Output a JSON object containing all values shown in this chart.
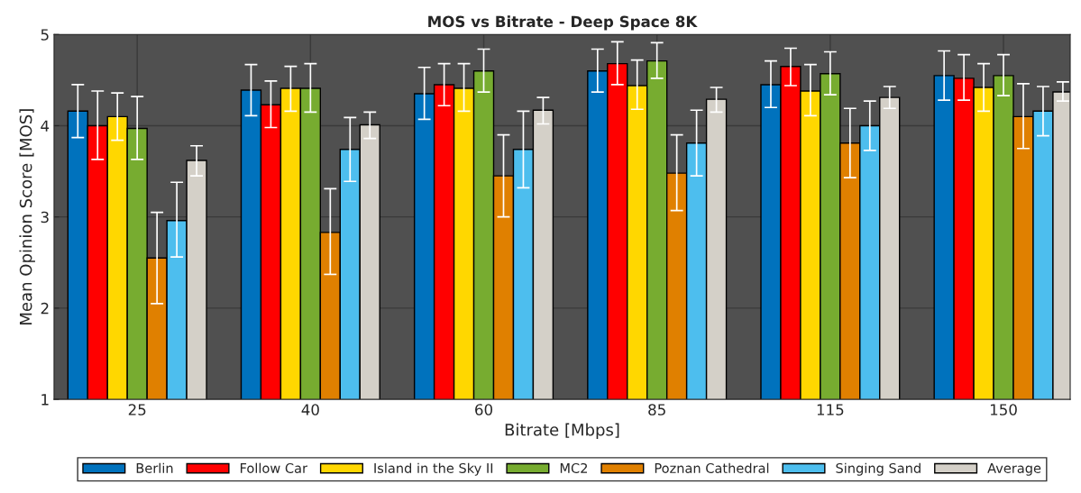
{
  "chart_data": {
    "type": "bar",
    "title": "MOS vs Bitrate - Deep Space 8K",
    "xlabel": "Bitrate [Mbps]",
    "ylabel": "Mean Opinion Score [MOS]",
    "categories": [
      "25",
      "40",
      "60",
      "85",
      "115",
      "150"
    ],
    "ylim": [
      1,
      5
    ],
    "yticks": [
      1,
      2,
      3,
      4,
      5
    ],
    "grid": true,
    "legend": "bottom",
    "series": [
      {
        "name": "Berlin",
        "color": "#0072bd",
        "values": [
          4.16,
          4.39,
          4.35,
          4.6,
          4.45,
          4.55
        ],
        "errors": [
          [
            3.87,
            4.45
          ],
          [
            4.11,
            4.67
          ],
          [
            4.07,
            4.64
          ],
          [
            4.37,
            4.84
          ],
          [
            4.2,
            4.71
          ],
          [
            4.28,
            4.82
          ]
        ]
      },
      {
        "name": "Follow Car",
        "color": "#ff0000",
        "values": [
          4.0,
          4.23,
          4.45,
          4.68,
          4.65,
          4.52
        ],
        "errors": [
          [
            3.63,
            4.38
          ],
          [
            3.98,
            4.49
          ],
          [
            4.22,
            4.68
          ],
          [
            4.45,
            4.92
          ],
          [
            4.44,
            4.85
          ],
          [
            4.28,
            4.78
          ]
        ]
      },
      {
        "name": "Island in the Sky II",
        "color": "#ffd700",
        "values": [
          4.1,
          4.41,
          4.41,
          4.44,
          4.38,
          4.42
        ],
        "errors": [
          [
            3.84,
            4.36
          ],
          [
            4.16,
            4.65
          ],
          [
            4.16,
            4.68
          ],
          [
            4.18,
            4.72
          ],
          [
            4.11,
            4.67
          ],
          [
            4.16,
            4.68
          ]
        ]
      },
      {
        "name": "MC2",
        "color": "#77ac30",
        "values": [
          3.97,
          4.41,
          4.6,
          4.71,
          4.57,
          4.55
        ],
        "errors": [
          [
            3.63,
            4.32
          ],
          [
            4.15,
            4.68
          ],
          [
            4.37,
            4.84
          ],
          [
            4.52,
            4.91
          ],
          [
            4.34,
            4.81
          ],
          [
            4.33,
            4.78
          ]
        ]
      },
      {
        "name": "Poznan Cathedral",
        "color": "#e08000",
        "values": [
          2.55,
          2.83,
          3.45,
          3.48,
          3.81,
          4.1
        ],
        "errors": [
          [
            2.05,
            3.05
          ],
          [
            2.37,
            3.31
          ],
          [
            3.0,
            3.9
          ],
          [
            3.07,
            3.9
          ],
          [
            3.43,
            4.19
          ],
          [
            3.75,
            4.46
          ]
        ]
      },
      {
        "name": "Singing Sand",
        "color": "#4dbeee",
        "values": [
          2.96,
          3.74,
          3.74,
          3.81,
          4.0,
          4.16
        ],
        "errors": [
          [
            2.56,
            3.38
          ],
          [
            3.39,
            4.09
          ],
          [
            3.32,
            4.16
          ],
          [
            3.45,
            4.17
          ],
          [
            3.73,
            4.27
          ],
          [
            3.89,
            4.43
          ]
        ]
      },
      {
        "name": "Average",
        "color": "#d4d0c8",
        "values": [
          3.62,
          4.01,
          4.17,
          4.29,
          4.31,
          4.37
        ],
        "errors": [
          [
            3.45,
            3.78
          ],
          [
            3.86,
            4.15
          ],
          [
            4.02,
            4.31
          ],
          [
            4.15,
            4.42
          ],
          [
            4.19,
            4.43
          ],
          [
            4.27,
            4.48
          ]
        ]
      }
    ]
  }
}
